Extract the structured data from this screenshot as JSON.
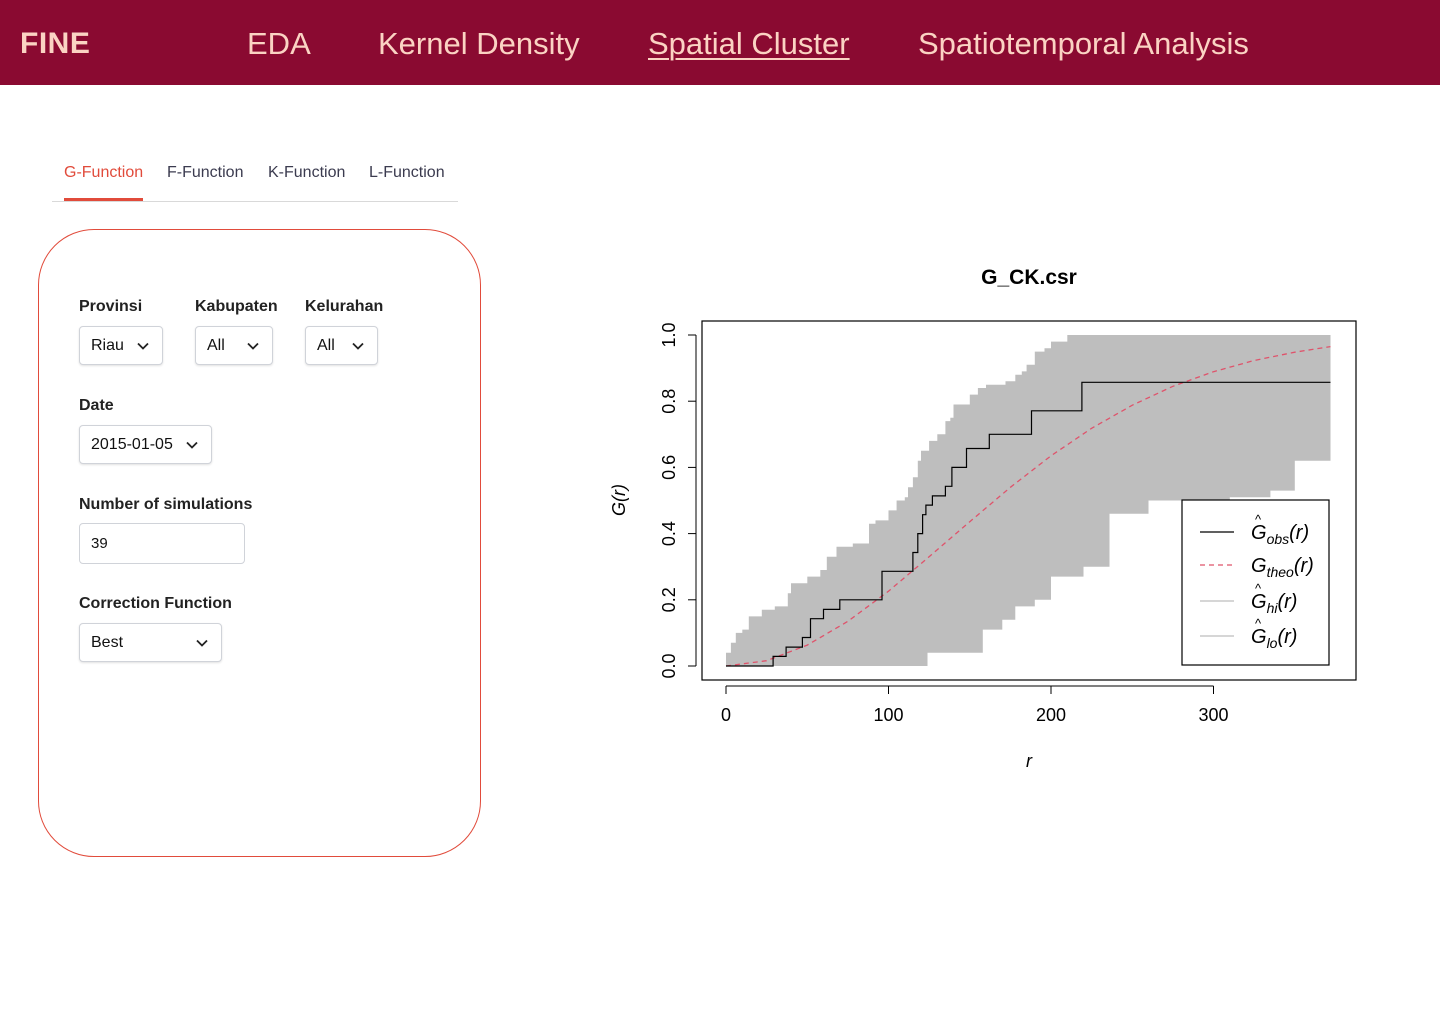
{
  "header": {
    "brand": "FINE",
    "nav": [
      {
        "label": "EDA"
      },
      {
        "label": "Kernel Density"
      },
      {
        "label": "Spatial Cluster",
        "active": true
      },
      {
        "label": "Spatiotemporal Analysis"
      }
    ],
    "colors": {
      "bar": "#8a0a31",
      "text": "#fbd3c3"
    }
  },
  "tabs": [
    {
      "label": "G-Function",
      "active": true
    },
    {
      "label": "F-Function"
    },
    {
      "label": "K-Function"
    },
    {
      "label": "L-Function"
    }
  ],
  "form": {
    "provinsi": {
      "label": "Provinsi",
      "value": "Riau"
    },
    "kabupaten": {
      "label": "Kabupaten",
      "value": "All"
    },
    "kelurahan": {
      "label": "Kelurahan",
      "value": "All"
    },
    "date": {
      "label": "Date",
      "value": "2015-01-05"
    },
    "simulations": {
      "label": "Number of simulations",
      "value": "39"
    },
    "correction": {
      "label": "Correction Function",
      "value": "Best"
    }
  },
  "accent_color": "#e14b3b",
  "chart_data": {
    "type": "line",
    "title": "G_CK.csr",
    "xlabel": "r",
    "ylabel": "G(r)",
    "xlim": [
      0,
      375
    ],
    "ylim": [
      0,
      1.0
    ],
    "x_ticks": [
      0,
      100,
      200,
      300
    ],
    "y_ticks": [
      0.0,
      0.2,
      0.4,
      0.6,
      0.8,
      1.0
    ],
    "grid": false,
    "legend_position": "bottom-right",
    "legend": [
      {
        "label": "Ĝobs(r)",
        "main": "G",
        "hat": true,
        "sub": "obs",
        "style": "solid",
        "color": "#000000"
      },
      {
        "label": "Gtheo(r)",
        "main": "G",
        "hat": false,
        "sub": "theo",
        "style": "dashed",
        "color": "#df536b"
      },
      {
        "label": "Ĝhi(r)",
        "main": "G",
        "hat": true,
        "sub": "hi",
        "style": "solid",
        "color": "#bebebe"
      },
      {
        "label": "Ĝlo(r)",
        "main": "G",
        "hat": true,
        "sub": "lo",
        "style": "solid",
        "color": "#bebebe"
      }
    ],
    "series": [
      {
        "name": "Ĝobs(r)",
        "step": true,
        "x": [
          0,
          29,
          37,
          47,
          52,
          60,
          70,
          96,
          115,
          118,
          121,
          123,
          127,
          135,
          139,
          148,
          162,
          188,
          219,
          372
        ],
        "y": [
          0,
          0.029,
          0.057,
          0.086,
          0.143,
          0.171,
          0.2,
          0.286,
          0.343,
          0.4,
          0.457,
          0.486,
          0.514,
          0.543,
          0.6,
          0.657,
          0.7,
          0.771,
          0.857,
          0.857
        ]
      },
      {
        "name": "Gtheo(r)",
        "x": [
          0,
          25,
          50,
          75,
          100,
          125,
          150,
          175,
          200,
          225,
          250,
          275,
          300,
          325,
          350,
          372
        ],
        "y": [
          0,
          0.016,
          0.063,
          0.135,
          0.226,
          0.33,
          0.436,
          0.54,
          0.635,
          0.718,
          0.788,
          0.845,
          0.889,
          0.923,
          0.948,
          0.965
        ]
      },
      {
        "name": "Ĝhi(r)",
        "step": true,
        "x": [
          0,
          3,
          6,
          10,
          14,
          22,
          30,
          38,
          40,
          50,
          58,
          62,
          68,
          78,
          88,
          92,
          100,
          105,
          110,
          112,
          115,
          118,
          120,
          125,
          130,
          135,
          138,
          140,
          150,
          155,
          160,
          172,
          178,
          182,
          185,
          190,
          196,
          200,
          210,
          230,
          250,
          280,
          310,
          330,
          372
        ],
        "y": [
          0.04,
          0.07,
          0.1,
          0.11,
          0.15,
          0.17,
          0.18,
          0.22,
          0.25,
          0.27,
          0.29,
          0.33,
          0.36,
          0.37,
          0.43,
          0.44,
          0.47,
          0.5,
          0.51,
          0.54,
          0.57,
          0.62,
          0.65,
          0.68,
          0.7,
          0.74,
          0.75,
          0.79,
          0.82,
          0.84,
          0.85,
          0.86,
          0.88,
          0.89,
          0.91,
          0.95,
          0.96,
          0.98,
          1.0,
          1.0,
          1.0,
          1.0,
          1.0,
          1.0,
          1.0
        ]
      },
      {
        "name": "Ĝlo(r)",
        "step": true,
        "x": [
          0,
          124,
          134,
          145,
          158,
          170,
          178,
          190,
          200,
          210,
          220,
          236,
          260,
          290,
          310,
          335,
          350,
          372
        ],
        "y": [
          0,
          0.04,
          0.04,
          0.04,
          0.11,
          0.14,
          0.18,
          0.2,
          0.27,
          0.27,
          0.3,
          0.46,
          0.5,
          0.5,
          0.51,
          0.53,
          0.62,
          0.62
        ]
      }
    ]
  }
}
